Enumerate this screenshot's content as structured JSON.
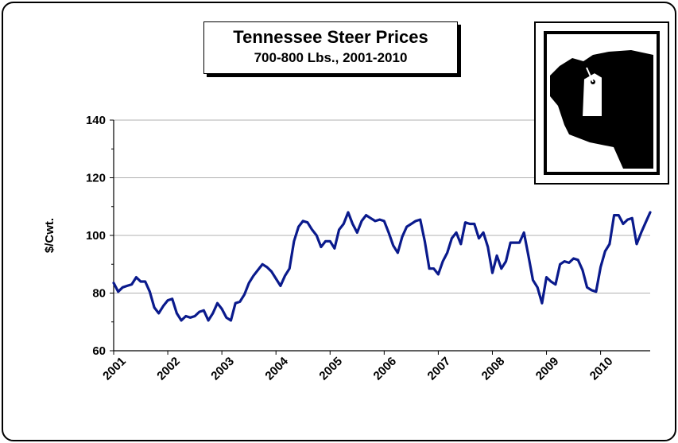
{
  "chart_data": {
    "type": "line",
    "title": "Tennessee Steer Prices",
    "subtitle": "700-800 Lbs., 2001-2010",
    "ylabel": "$/Cwt.",
    "xlabel": "",
    "ylim": [
      60,
      140
    ],
    "yticks": [
      "60",
      "80",
      "100",
      "120",
      "140"
    ],
    "xticks": [
      "2001",
      "2002",
      "2003",
      "2004",
      "2005",
      "2006",
      "2007",
      "2008",
      "2009",
      "2010"
    ],
    "x_start_year": 2001,
    "points_per_year": 12,
    "grid": "horizontal",
    "line_color": "#0a1a8c",
    "series": [
      {
        "values": [
          83.5,
          80.5,
          82,
          82.5,
          83,
          85.5,
          84,
          84,
          80.5,
          75,
          73,
          75.5,
          77.5,
          78,
          73,
          70.5,
          72,
          71.5,
          72,
          73.5,
          74,
          70.5,
          73,
          76.5,
          74.5,
          71.5,
          70.5,
          76.5,
          77,
          79.5,
          83.5,
          86,
          88,
          90,
          89,
          87.5,
          85,
          82.5,
          86,
          88.5,
          98,
          103,
          105,
          104.5,
          102,
          100,
          96,
          98,
          98,
          95.5,
          102,
          104,
          108,
          104,
          101,
          105,
          107,
          106,
          105,
          105.5,
          105,
          101,
          96.5,
          94,
          99.5,
          103,
          104,
          105,
          105.5,
          98,
          88.5,
          88.5,
          86.5,
          91,
          94,
          99,
          101,
          97,
          104.5,
          104,
          104,
          99,
          101,
          96,
          87,
          93,
          88.5,
          91,
          97.5,
          97.5,
          97.5,
          101,
          93,
          84.5,
          82,
          76.5,
          85.5,
          84,
          83,
          90,
          91,
          90.5,
          92,
          91.5,
          88,
          82,
          81,
          80.5,
          89,
          94.5,
          97,
          107,
          107,
          104,
          105.5,
          106,
          97,
          101,
          104.5,
          108
        ]
      }
    ]
  },
  "logo": {
    "name": "cow-ear-tag-icon"
  }
}
